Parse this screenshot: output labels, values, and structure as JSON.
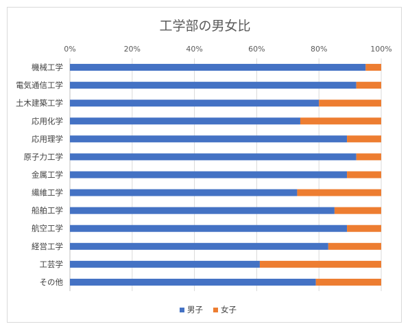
{
  "chart_data": {
    "type": "bar",
    "orientation": "horizontal",
    "stacked": "percent",
    "title": "工学部の男女比",
    "categories": [
      "機械工学",
      "電気通信工学",
      "土木建築工学",
      "応用化学",
      "応用理学",
      "原子力工学",
      "金属工学",
      "繊維工学",
      "船舶工学",
      "航空工学",
      "経営工学",
      "工芸学",
      "その他"
    ],
    "series": [
      {
        "name": "男子",
        "color": "#4472C4",
        "values": [
          95,
          92,
          80,
          74,
          89,
          92,
          89,
          73,
          85,
          89,
          83,
          61,
          79
        ]
      },
      {
        "name": "女子",
        "color": "#ED7D31",
        "values": [
          5,
          8,
          20,
          26,
          11,
          8,
          11,
          27,
          15,
          11,
          17,
          39,
          21
        ]
      }
    ],
    "xaxis": {
      "position": "top",
      "range": [
        0,
        100
      ],
      "ticks": [
        "0%",
        "20%",
        "40%",
        "60%",
        "80%",
        "100%"
      ]
    },
    "grid": true,
    "legend": "bottom"
  }
}
